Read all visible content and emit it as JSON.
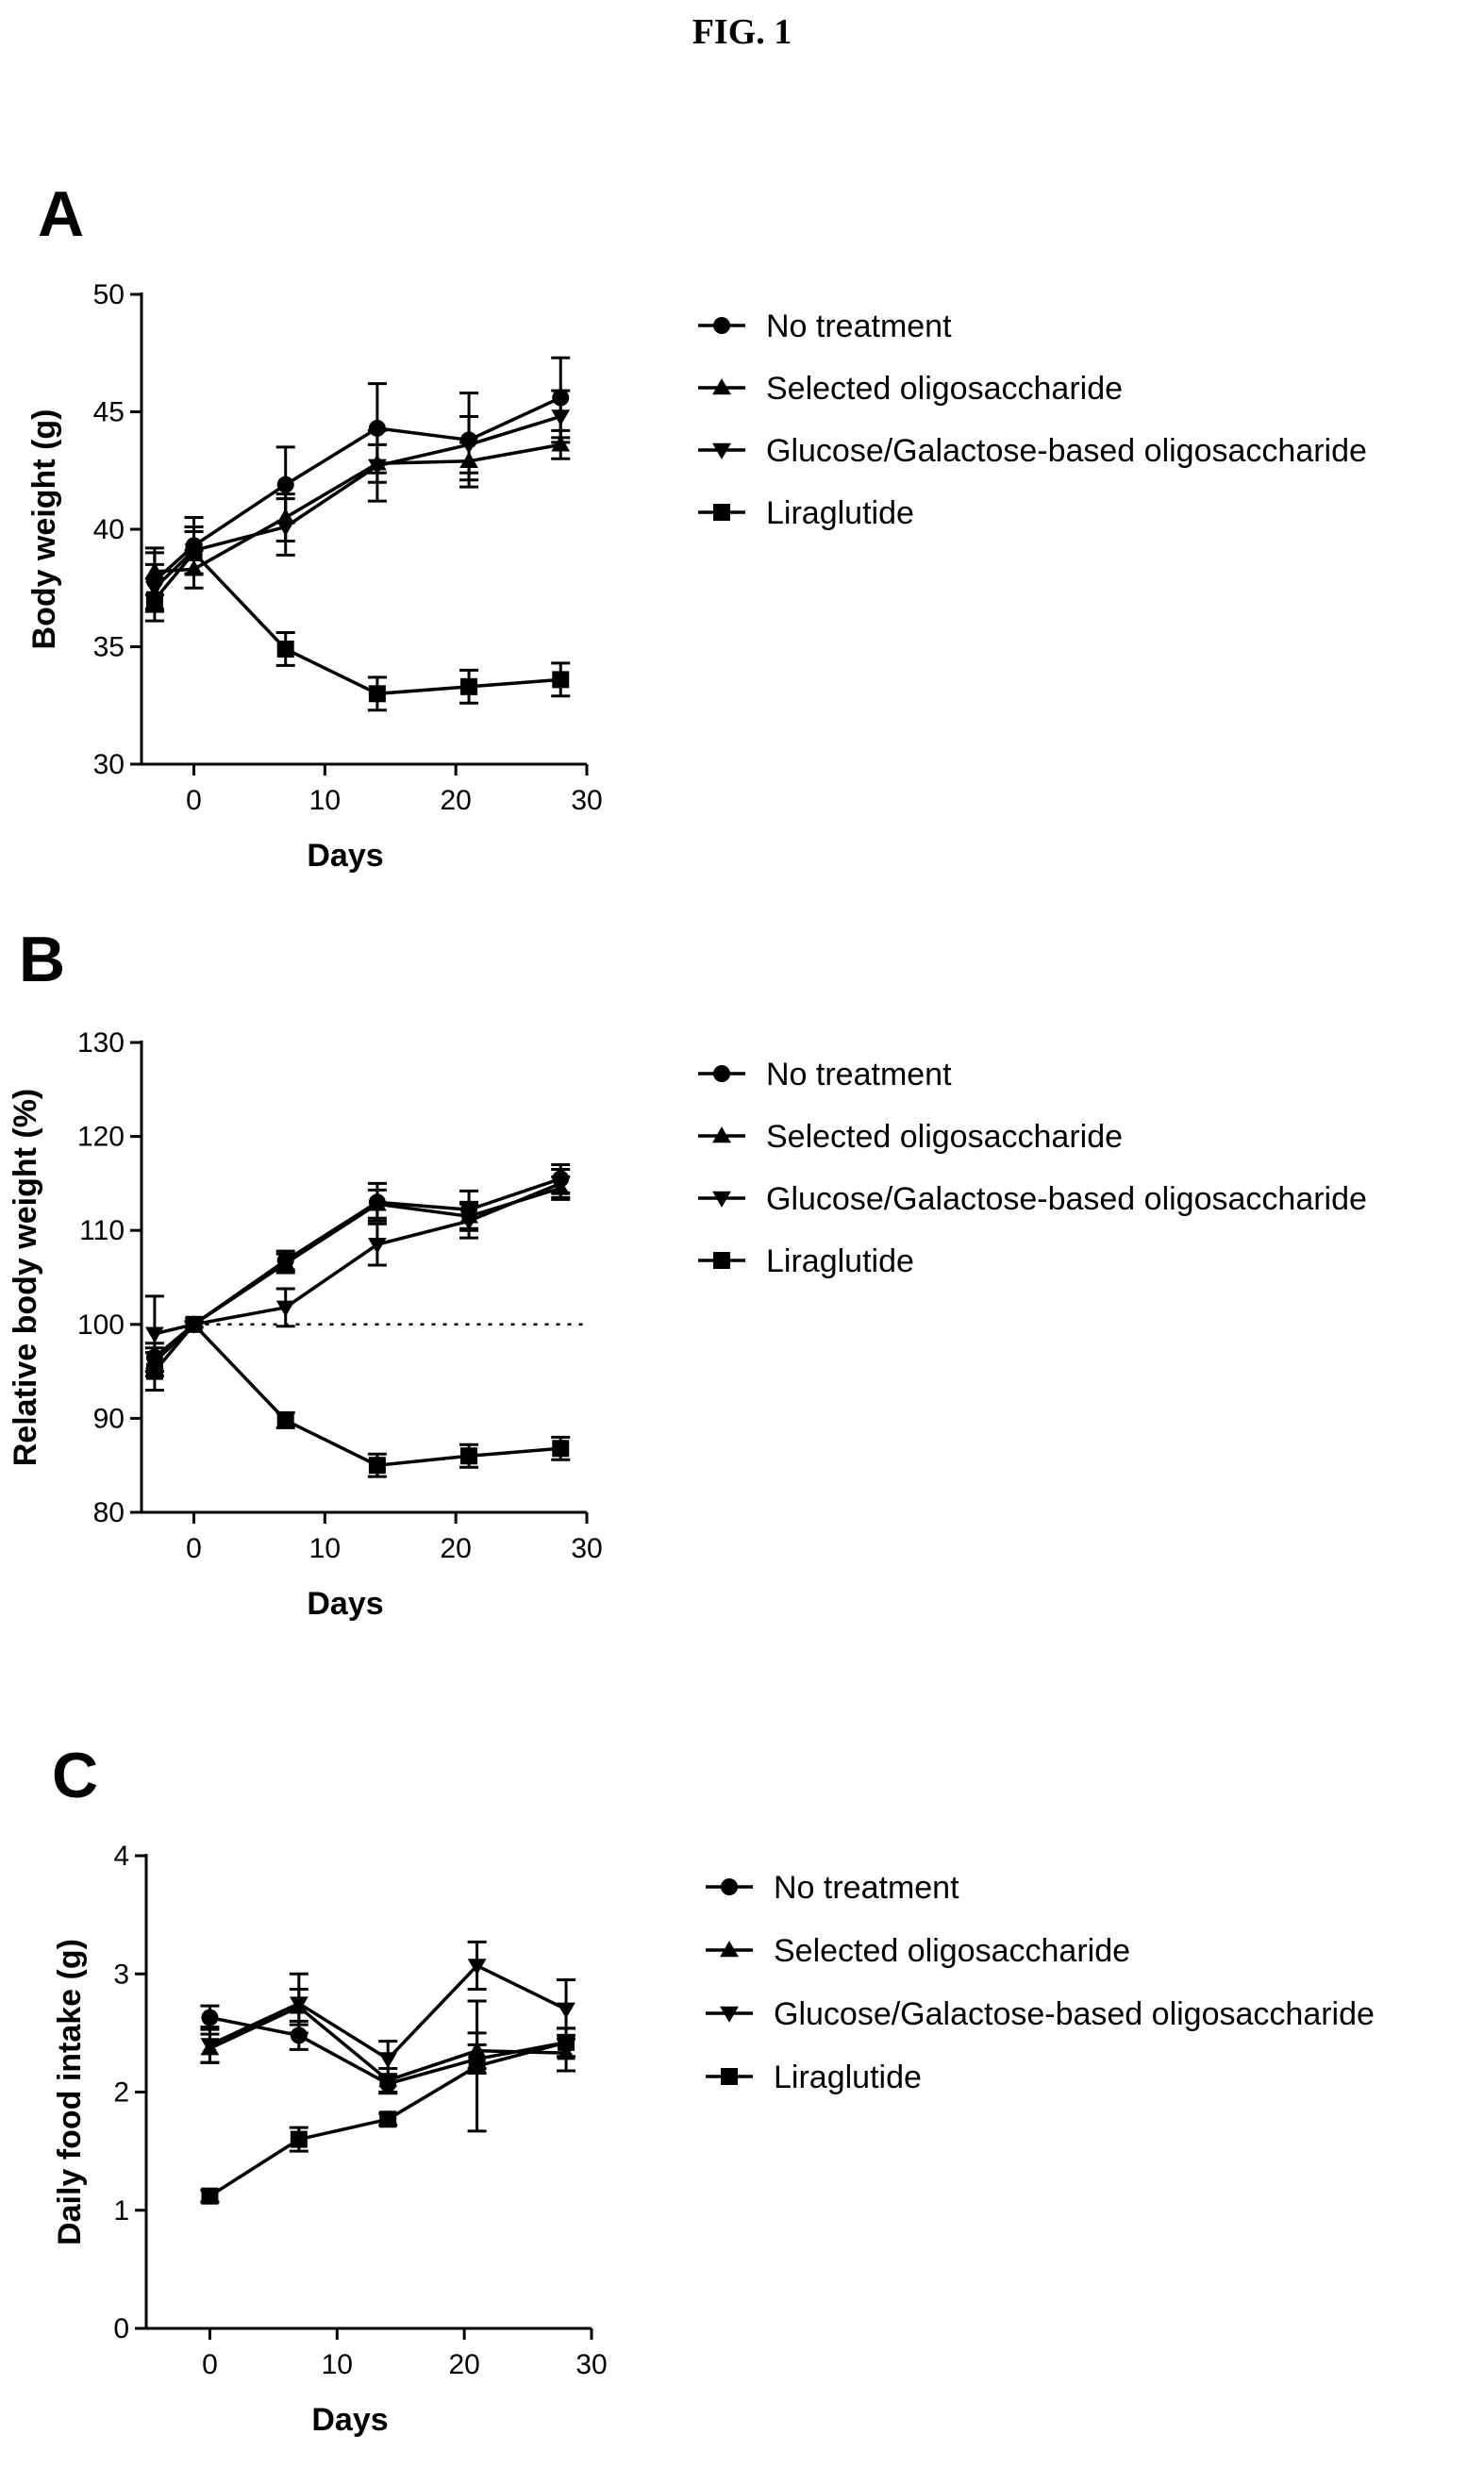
{
  "figure_title": "FIG. 1",
  "legend": [
    "No treatment",
    "Selected oligosaccharide",
    "Glucose/Galactose-based oligosaccharide",
    "Liraglutide"
  ],
  "chart_data": [
    {
      "panel": "A",
      "type": "line",
      "title": "",
      "xlabel": "Days",
      "ylabel": "Body weight (g)",
      "xlim": [
        -4,
        30
      ],
      "ylim": [
        30,
        50
      ],
      "xticks": [
        0,
        10,
        20,
        30
      ],
      "yticks": [
        30,
        35,
        40,
        45,
        50
      ],
      "legend_position": "right",
      "series": [
        {
          "name": "No treatment",
          "marker": "circle",
          "x": [
            -3,
            0,
            7,
            14,
            21,
            28
          ],
          "y": [
            37.8,
            39.3,
            41.9,
            44.3,
            43.8,
            45.6
          ],
          "err": [
            1.2,
            1.2,
            1.6,
            1.9,
            2.0,
            1.7
          ]
        },
        {
          "name": "Selected oligosaccharide",
          "marker": "triangle-up",
          "x": [
            -3,
            0,
            7,
            14,
            21,
            28
          ],
          "y": [
            38.2,
            38.3,
            40.5,
            42.8,
            42.9,
            43.6
          ],
          "err": [
            1.0,
            0.8,
            1.0,
            0.8,
            0.8,
            0.6
          ]
        },
        {
          "name": "Glucose/Galactose-based oligosaccharide",
          "marker": "triangle-down",
          "x": [
            -3,
            0,
            7,
            14,
            21,
            28
          ],
          "y": [
            37.5,
            39.1,
            40.1,
            42.7,
            43.6,
            44.8
          ],
          "err": [
            1.0,
            1.0,
            1.2,
            1.5,
            1.2,
            1.1
          ]
        },
        {
          "name": "Liraglutide",
          "marker": "square",
          "x": [
            -3,
            0,
            7,
            14,
            21,
            28
          ],
          "y": [
            37.0,
            39.0,
            34.9,
            33.0,
            33.3,
            33.6
          ],
          "err": [
            0.9,
            0.9,
            0.7,
            0.7,
            0.7,
            0.7
          ]
        }
      ]
    },
    {
      "panel": "B",
      "type": "line",
      "title": "",
      "xlabel": "Days",
      "ylabel": "Relative body weight (%)",
      "xlim": [
        -4,
        30
      ],
      "ylim": [
        80,
        130
      ],
      "xticks": [
        0,
        10,
        20,
        30
      ],
      "yticks": [
        80,
        90,
        100,
        110,
        120,
        130
      ],
      "reference_line_y": 100,
      "legend_position": "right",
      "series": [
        {
          "name": "No treatment",
          "marker": "circle",
          "x": [
            -3,
            0,
            7,
            14,
            21,
            28
          ],
          "y": [
            96.5,
            100,
            106.8,
            113.0,
            112.2,
            115.5
          ],
          "err": [
            1.5,
            0.3,
            1.0,
            2.0,
            2.0,
            1.5
          ]
        },
        {
          "name": "Selected oligosaccharide",
          "marker": "triangle-up",
          "x": [
            -3,
            0,
            7,
            14,
            21,
            28
          ],
          "y": [
            96.0,
            100,
            106.5,
            112.8,
            111.5,
            114.5
          ],
          "err": [
            1.5,
            0.3,
            1.0,
            1.5,
            1.5,
            1.2
          ]
        },
        {
          "name": "Glucose/Galactose-based oligosaccharide",
          "marker": "triangle-down",
          "x": [
            -3,
            0,
            7,
            14,
            21,
            28
          ],
          "y": [
            99.0,
            100,
            101.8,
            108.5,
            111.0,
            115.0
          ],
          "err": [
            4.0,
            0.3,
            2.0,
            2.2,
            1.8,
            1.5
          ]
        },
        {
          "name": "Liraglutide",
          "marker": "square",
          "x": [
            -3,
            0,
            7,
            14,
            21,
            28
          ],
          "y": [
            95.0,
            100,
            89.8,
            85.0,
            86.0,
            86.8
          ],
          "err": [
            2.0,
            0.3,
            0.8,
            1.2,
            1.2,
            1.2
          ]
        }
      ]
    },
    {
      "panel": "C",
      "type": "line",
      "title": "",
      "xlabel": "Days",
      "ylabel": "Daily food intake (g)",
      "xlim": [
        -5,
        30
      ],
      "ylim": [
        0,
        4
      ],
      "xticks": [
        0,
        10,
        20,
        30
      ],
      "yticks": [
        0,
        1,
        2,
        3,
        4
      ],
      "legend_position": "right",
      "series": [
        {
          "name": "No treatment",
          "marker": "circle",
          "x": [
            0,
            7,
            14,
            21,
            28
          ],
          "y": [
            2.63,
            2.48,
            2.07,
            2.28,
            2.42
          ],
          "err": [
            0.1,
            0.12,
            0.08,
            0.12,
            0.12
          ]
        },
        {
          "name": "Selected oligosaccharide",
          "marker": "triangle-up",
          "x": [
            0,
            7,
            14,
            21,
            28
          ],
          "y": [
            2.37,
            2.72,
            2.1,
            2.35,
            2.33
          ],
          "err": [
            0.12,
            0.15,
            0.1,
            0.15,
            0.15
          ]
        },
        {
          "name": "Glucose/Galactose-based oligosaccharide",
          "marker": "triangle-down",
          "x": [
            0,
            7,
            14,
            21,
            28
          ],
          "y": [
            2.4,
            2.75,
            2.28,
            3.07,
            2.7
          ],
          "err": [
            0.15,
            0.25,
            0.15,
            0.2,
            0.25
          ]
        },
        {
          "name": "Liraglutide",
          "marker": "square",
          "x": [
            0,
            7,
            14,
            21,
            28
          ],
          "y": [
            1.12,
            1.6,
            1.77,
            2.22,
            2.42
          ],
          "err": [
            0.05,
            0.1,
            0.05,
            0.55,
            0.12
          ]
        }
      ]
    }
  ]
}
